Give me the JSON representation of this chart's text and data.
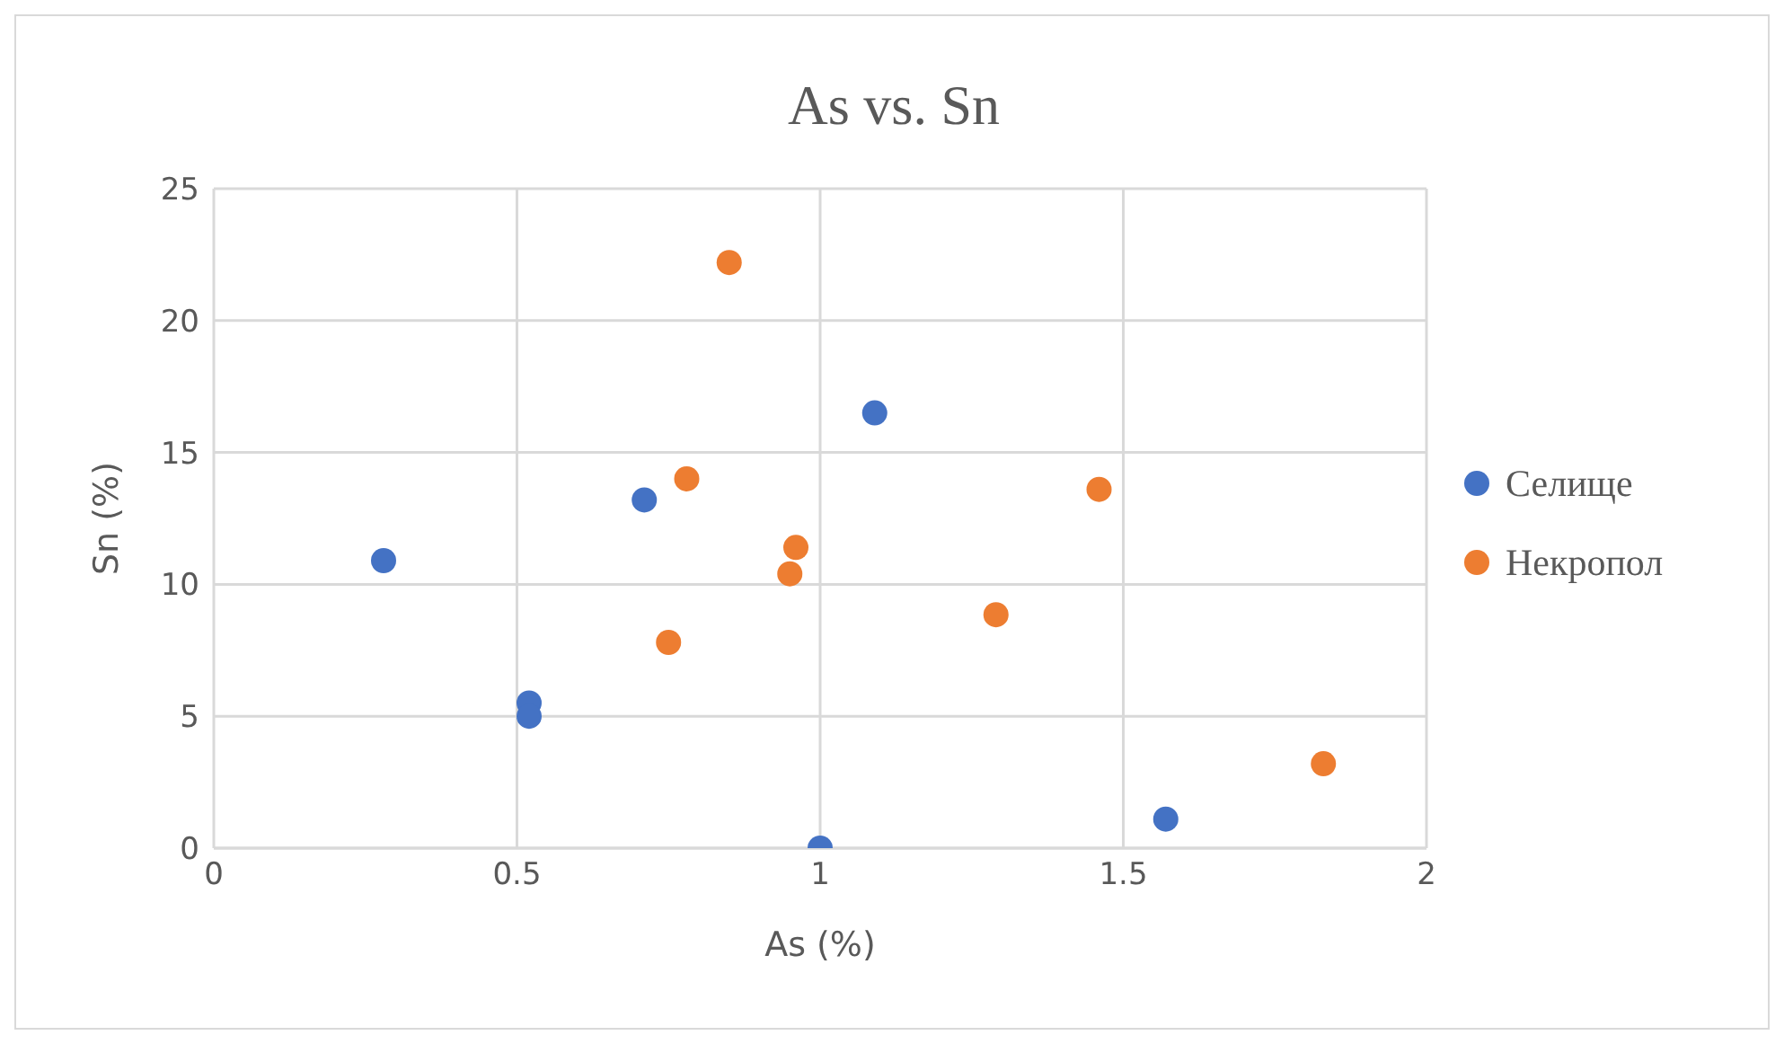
{
  "chart_data": {
    "type": "scatter",
    "title": "As vs. Sn",
    "xlabel": "As (%)",
    "ylabel": "Sn (%)",
    "xlim": [
      0,
      2
    ],
    "xticks": [
      0,
      0.5,
      1,
      1.5,
      2
    ],
    "ylim": [
      0,
      25
    ],
    "yticks": [
      0,
      5,
      10,
      15,
      20,
      25
    ],
    "grid": true,
    "legend": "right",
    "marker": "circle",
    "series": [
      {
        "name": "Селище",
        "color": "#4472c4",
        "x": [
          0.28,
          0.52,
          0.52,
          0.71,
          1.0,
          1.09,
          1.57
        ],
        "values": [
          10.9,
          5.5,
          5.0,
          13.2,
          0,
          16.5,
          1.1
        ]
      },
      {
        "name": "Некропол",
        "color": "#ed7d31",
        "x": [
          0.85,
          0.78,
          0.75,
          0.96,
          0.95,
          1.29,
          1.46,
          1.83
        ],
        "values": [
          22.2,
          14.0,
          7.8,
          11.4,
          10.4,
          8.85,
          13.6,
          3.2
        ]
      }
    ]
  }
}
